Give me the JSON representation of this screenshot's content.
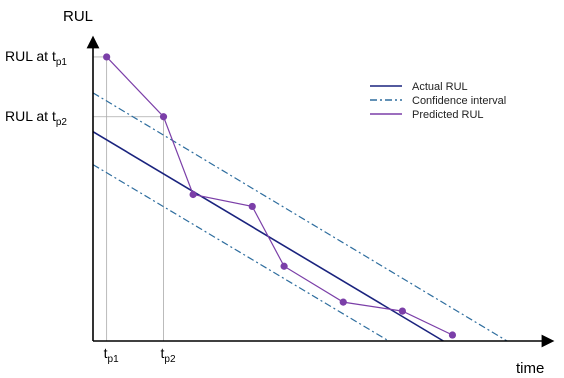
{
  "chart_data": {
    "type": "line",
    "title": "",
    "xlabel": "time",
    "ylabel": "RUL",
    "xlim": [
      0,
      100
    ],
    "ylim": [
      0,
      100
    ],
    "x_ticks": [
      {
        "x": 3,
        "main": "t",
        "sub": "p1"
      },
      {
        "x": 15.5,
        "main": "t",
        "sub": "p2"
      }
    ],
    "y_ticks": [
      {
        "y": 95,
        "main": "RUL at t",
        "sub": "p1"
      },
      {
        "y": 75,
        "main": "RUL at t",
        "sub": "p2"
      }
    ],
    "series": [
      {
        "name": "Actual RUL",
        "style": "solid",
        "color": "#1a237e",
        "x": [
          0,
          77
        ],
        "y": [
          70,
          0
        ]
      },
      {
        "name": "Confidence interval",
        "style": "dashdot",
        "color": "#2e6d9e",
        "x": [
          0,
          91
        ],
        "y": [
          83,
          0
        ]
      },
      {
        "name": "",
        "style": "dashdot",
        "color": "#2e6d9e",
        "x": [
          0,
          65
        ],
        "y": [
          59,
          0
        ]
      },
      {
        "name": "Predicted RUL",
        "style": "solid-markers",
        "color": "#7b3fa8",
        "x": [
          3,
          15.5,
          22,
          35,
          42,
          55,
          68,
          79
        ],
        "y": [
          95,
          75,
          49,
          45,
          25,
          13,
          10,
          2
        ]
      }
    ],
    "legend": [
      "Actual RUL",
      "Confidence interval",
      "Predicted RUL"
    ],
    "legend_placement": "top-right",
    "grid": false,
    "colors": {
      "actual": "#1a237e",
      "confidence": "#2e6d9e",
      "predicted": "#7b3fa8",
      "guides": "#aaaaaa"
    }
  }
}
